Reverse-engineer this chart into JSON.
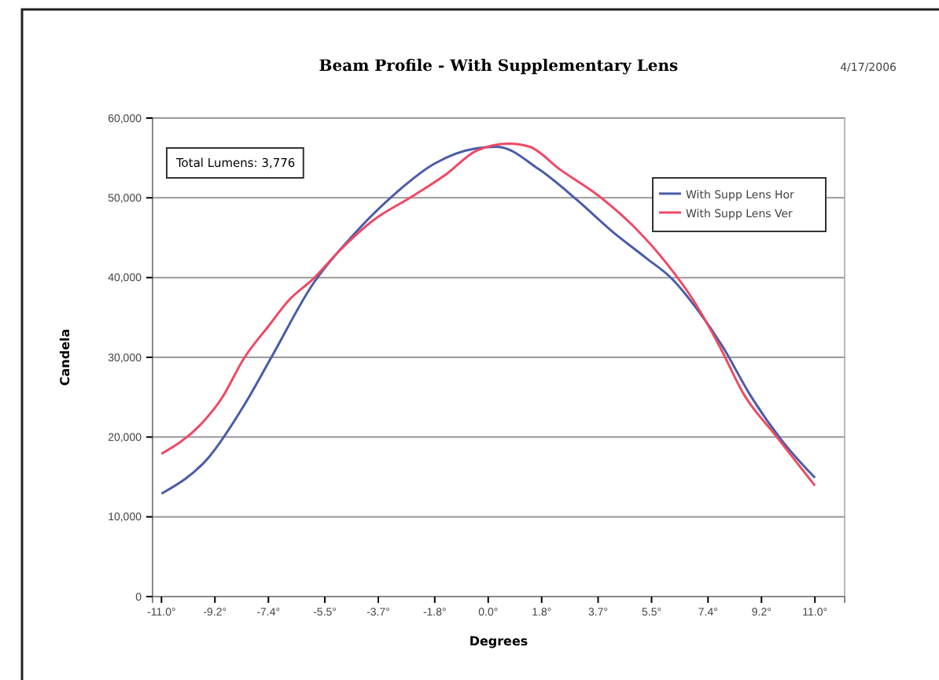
{
  "chart_data": {
    "type": "line",
    "title": "Beam Profile - With Supplementary Lens",
    "xlabel": "Degrees",
    "ylabel": "Candela",
    "annotations": [
      "Total Lumens: 3,776",
      "4/17/2006"
    ],
    "series": [
      {
        "name": "With Supp Lens Hor",
        "color": "#4a5ca8",
        "x": [
          -11.0,
          -9.4,
          -8.2,
          -7.3,
          -5.9,
          -4.6,
          -3.2,
          -1.8,
          -0.4,
          0.3,
          1.7,
          3.0,
          4.2,
          5.3,
          6.2,
          7.0,
          7.9,
          8.8,
          9.9,
          11.0
        ],
        "values": [
          12900,
          17500,
          24100,
          30000,
          39200,
          45100,
          50300,
          54300,
          56200,
          56400,
          53600,
          49700,
          45700,
          42500,
          39800,
          36200,
          31300,
          25400,
          19500,
          14900
        ]
      },
      {
        "name": "With Supp Lens Ver",
        "color": "#ee4a64",
        "x": [
          -11.0,
          -9.7,
          -9.0,
          -8.2,
          -7.4,
          -6.7,
          -5.9,
          -5.0,
          -3.9,
          -2.5,
          -1.4,
          -0.4,
          0.7,
          1.4,
          2.4,
          3.7,
          4.9,
          6.0,
          6.9,
          7.8,
          8.6,
          9.7,
          11.0
        ],
        "values": [
          17900,
          21500,
          24700,
          30000,
          33900,
          37200,
          39800,
          43400,
          47100,
          50300,
          53000,
          55900,
          56800,
          56400,
          53600,
          50300,
          46400,
          41800,
          37200,
          31300,
          25400,
          20100,
          13900
        ]
      }
    ],
    "xlim": [
      -11.3,
      12.0
    ],
    "xticks": [
      {
        "value": -11,
        "label": "-11.0°"
      },
      {
        "value": -9.2,
        "label": "-9.2°"
      },
      {
        "value": -7.4,
        "label": "-7.4°"
      },
      {
        "value": -5.5,
        "label": "-5.5°"
      },
      {
        "value": -3.7,
        "label": "-3.7°"
      },
      {
        "value": -1.8,
        "label": "-1.8°"
      },
      {
        "value": 0,
        "label": "0.0°"
      },
      {
        "value": 1.8,
        "label": "1.8°"
      },
      {
        "value": 3.7,
        "label": "3.7°"
      },
      {
        "value": 5.5,
        "label": "5.5°"
      },
      {
        "value": 7.4,
        "label": "7.4°"
      },
      {
        "value": 9.2,
        "label": "9.2°"
      },
      {
        "value": 11,
        "label": "11.0°"
      }
    ],
    "ylim": [
      0,
      60000
    ],
    "yticks": [
      {
        "value": 0,
        "label": "0"
      },
      {
        "value": 10000,
        "label": "10,000"
      },
      {
        "value": 20000,
        "label": "20,000"
      },
      {
        "value": 30000,
        "label": "30,000"
      },
      {
        "value": 40000,
        "label": "40,000"
      },
      {
        "value": 50000,
        "label": "50,000"
      },
      {
        "value": 60000,
        "label": "60,000"
      }
    ],
    "grid": "y",
    "legend": "top right",
    "marker": "none",
    "line_style": "solid"
  }
}
